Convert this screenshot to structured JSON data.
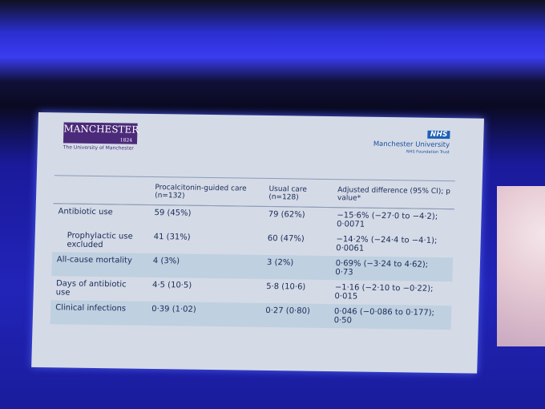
{
  "header": {
    "left_logo": {
      "name": "MANCHESTER",
      "year": "1824",
      "subtitle": "The University of Manchester"
    },
    "right_logo": {
      "badge": "NHS",
      "name": "Manchester University",
      "subtitle": "NHS Foundation Trust"
    }
  },
  "table": {
    "columns": [
      "Procalcitonin-guided care (n=132)",
      "Usual care (n=128)",
      "Adjusted difference (95% CI); p value*"
    ],
    "rows": [
      [
        "Antibiotic use",
        "59 (45%)",
        "79 (62%)",
        "−15·6% (−27·0 to −4·2); 0·0071"
      ],
      [
        "Prophylactic use excluded",
        "41 (31%)",
        "60 (47%)",
        "−14·2% (−24·4 to −4·1); 0·0061"
      ],
      [
        "All-cause mortality",
        "4 (3%)",
        "3 (2%)",
        "0·69% (−3·24 to 4·62); 0·73"
      ],
      [
        "Days of antibiotic use",
        "4·5 (10·5)",
        "5·8 (10·6)",
        "−1·16 (−2·10 to −0·22); 0·015"
      ],
      [
        "Clinical infections",
        "0·39 (1·02)",
        "0·27 (0·80)",
        "0·046 (−0·086 to 0·177); 0·50"
      ]
    ]
  }
}
